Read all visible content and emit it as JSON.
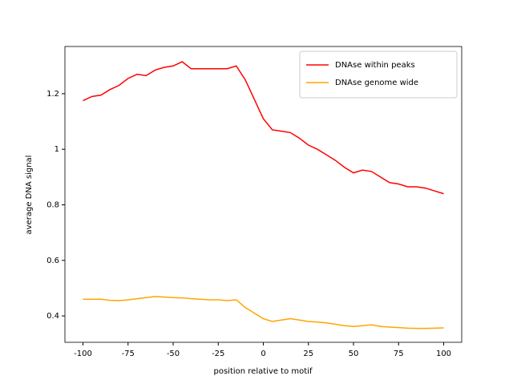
{
  "chart_data": {
    "type": "line",
    "xlabel": "position relative to motif",
    "ylabel": "average DNA signal",
    "x": [
      -100,
      -95,
      -90,
      -85,
      -80,
      -75,
      -70,
      -65,
      -60,
      -55,
      -50,
      -45,
      -40,
      -35,
      -30,
      -25,
      -20,
      -15,
      -10,
      -5,
      0,
      5,
      10,
      15,
      20,
      25,
      30,
      35,
      40,
      45,
      50,
      55,
      60,
      65,
      70,
      75,
      80,
      85,
      90,
      95,
      100
    ],
    "series": [
      {
        "name": "DNAse within peaks",
        "color": "#ff0000",
        "values": [
          1.175,
          1.19,
          1.195,
          1.215,
          1.23,
          1.255,
          1.27,
          1.265,
          1.285,
          1.295,
          1.3,
          1.315,
          1.29,
          1.29,
          1.29,
          1.29,
          1.29,
          1.3,
          1.25,
          1.18,
          1.11,
          1.07,
          1.065,
          1.06,
          1.04,
          1.015,
          1.0,
          0.98,
          0.96,
          0.935,
          0.915,
          0.925,
          0.92,
          0.9,
          0.88,
          0.875,
          0.865,
          0.865,
          0.86,
          0.85,
          0.84
        ]
      },
      {
        "name": "DNAse genome wide",
        "color": "#ffa500",
        "values": [
          0.46,
          0.46,
          0.46,
          0.456,
          0.455,
          0.458,
          0.462,
          0.466,
          0.47,
          0.468,
          0.466,
          0.465,
          0.462,
          0.46,
          0.458,
          0.458,
          0.455,
          0.458,
          0.43,
          0.41,
          0.39,
          0.38,
          0.385,
          0.39,
          0.385,
          0.38,
          0.378,
          0.375,
          0.37,
          0.365,
          0.362,
          0.365,
          0.368,
          0.362,
          0.36,
          0.358,
          0.356,
          0.355,
          0.355,
          0.356,
          0.357
        ]
      }
    ],
    "xlim": [
      -110,
      110
    ],
    "xticks": [
      -100,
      -75,
      -50,
      -25,
      0,
      25,
      50,
      75,
      100
    ],
    "ylim": [
      0.305,
      1.37
    ],
    "yticks": [
      0.4,
      0.6,
      0.8,
      1.0,
      1.2
    ],
    "legend": "upper right"
  }
}
